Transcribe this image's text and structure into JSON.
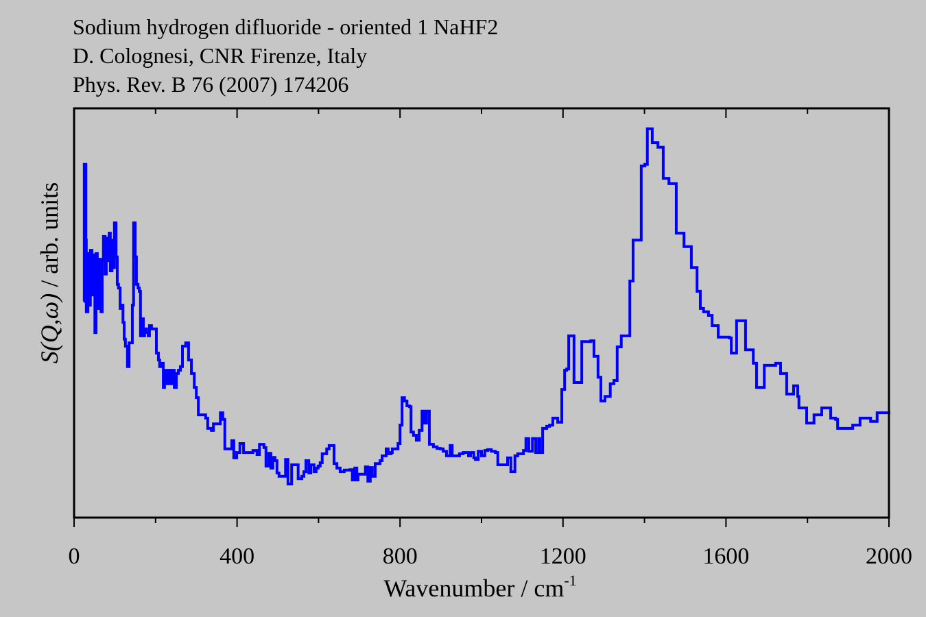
{
  "chart_data": {
    "type": "line",
    "style": "step",
    "title_lines": [
      "Sodium hydrogen difluoride - oriented 1 NaHF2",
      "D. Colognesi, CNR Firenze, Italy",
      "Phys. Rev. B 76 (2007) 174206"
    ],
    "xlabel": "Wavenumber / cm",
    "xlabel_superscript": "-1",
    "ylabel_italic": "S(Q,ω)",
    "ylabel_rest": " / arb. units",
    "xlim": [
      0,
      2000
    ],
    "ylim": [
      0,
      1
    ],
    "x_ticks_major": [
      0,
      400,
      800,
      1200,
      1600,
      2000
    ],
    "x_tick_labels": [
      "0",
      "400",
      "800",
      "1200",
      "1600",
      "2000"
    ],
    "x_ticks_minor": [
      200,
      600,
      1000,
      1400,
      1800
    ],
    "grid": false,
    "legend": "none",
    "series": [
      {
        "name": "NaHF2 oriented 1",
        "color": "#0000ff",
        "x": [
          24,
          25,
          29,
          30,
          34,
          37,
          40,
          44,
          47,
          51,
          54,
          57,
          61,
          66,
          69,
          72,
          76,
          79,
          82,
          86,
          89,
          93,
          96,
          99,
          103,
          106,
          109,
          113,
          116,
          120,
          123,
          126,
          131,
          135,
          143,
          146,
          150,
          153,
          157,
          160,
          163,
          167,
          170,
          173,
          178,
          182,
          185,
          190,
          202,
          207,
          210,
          214,
          219,
          222,
          226,
          231,
          236,
          241,
          246,
          251,
          256,
          261,
          266,
          274,
          281,
          288,
          295,
          300,
          305,
          323,
          328,
          337,
          342,
          359,
          365,
          370,
          387,
          392,
          399,
          407,
          416,
          439,
          449,
          455,
          466,
          471,
          478,
          483,
          488,
          493,
          498,
          503,
          519,
          525,
          534,
          550,
          559,
          564,
          569,
          576,
          581,
          589,
          594,
          599,
          604,
          609,
          620,
          626,
          638,
          645,
          653,
          663,
          677,
          683,
          689,
          694,
          697,
          715,
          721,
          727,
          732,
          739,
          751,
          756,
          766,
          771,
          778,
          781,
          795,
          800,
          805,
          811,
          817,
          823,
          827,
          833,
          840,
          847,
          854,
          860,
          865,
          872,
          882,
          891,
          899,
          906,
          914,
          923,
          928,
          946,
          955,
          968,
          973,
          981,
          985,
          992,
          1000,
          1008,
          1015,
          1024,
          1034,
          1040,
          1064,
          1072,
          1082,
          1089,
          1103,
          1109,
          1116,
          1125,
          1133,
          1140,
          1143,
          1150,
          1160,
          1167,
          1175,
          1187,
          1197,
          1204,
          1209,
          1214,
          1227,
          1246,
          1268,
          1276,
          1286,
          1293,
          1303,
          1316,
          1325,
          1333,
          1343,
          1364,
          1372,
          1392,
          1401,
          1407,
          1419,
          1433,
          1446,
          1460,
          1478,
          1497,
          1515,
          1529,
          1537,
          1545,
          1557,
          1566,
          1581,
          1608,
          1613,
          1626,
          1648,
          1667,
          1675,
          1694,
          1722,
          1734,
          1749,
          1766,
          1776,
          1779,
          1798,
          1816,
          1835,
          1857,
          1869,
          1874,
          1911,
          1929,
          1955,
          1971,
          2000
        ],
        "y": [
          0.528,
          0.863,
          0.678,
          0.503,
          0.645,
          0.519,
          0.653,
          0.544,
          0.642,
          0.452,
          0.645,
          0.511,
          0.631,
          0.503,
          0.628,
          0.687,
          0.595,
          0.683,
          0.628,
          0.695,
          0.603,
          0.678,
          0.611,
          0.72,
          0.637,
          0.57,
          0.561,
          0.511,
          0.519,
          0.477,
          0.436,
          0.419,
          0.369,
          0.427,
          0.519,
          0.72,
          0.637,
          0.57,
          0.561,
          0.553,
          0.444,
          0.486,
          0.444,
          0.461,
          0.452,
          0.444,
          0.469,
          0.461,
          0.402,
          0.385,
          0.369,
          0.377,
          0.318,
          0.36,
          0.327,
          0.36,
          0.327,
          0.36,
          0.318,
          0.352,
          0.36,
          0.369,
          0.419,
          0.427,
          0.385,
          0.352,
          0.318,
          0.293,
          0.251,
          0.243,
          0.218,
          0.213,
          0.229,
          0.256,
          0.24,
          0.168,
          0.188,
          0.146,
          0.159,
          0.181,
          0.159,
          0.164,
          0.154,
          0.179,
          0.171,
          0.126,
          0.157,
          0.121,
          0.147,
          0.139,
          0.109,
          0.101,
          0.142,
          0.082,
          0.129,
          0.095,
          0.101,
          0.112,
          0.139,
          0.109,
          0.129,
          0.112,
          0.121,
          0.126,
          0.134,
          0.156,
          0.168,
          0.176,
          0.132,
          0.121,
          0.112,
          0.116,
          0.117,
          0.092,
          0.121,
          0.092,
          0.106,
          0.124,
          0.089,
          0.122,
          0.101,
          0.132,
          0.139,
          0.151,
          0.168,
          0.156,
          0.159,
          0.168,
          0.181,
          0.226,
          0.293,
          0.285,
          0.273,
          0.271,
          0.209,
          0.201,
          0.189,
          0.213,
          0.26,
          0.231,
          0.26,
          0.179,
          0.173,
          0.169,
          0.168,
          0.162,
          0.151,
          0.176,
          0.151,
          0.156,
          0.159,
          0.151,
          0.159,
          0.146,
          0.142,
          0.162,
          0.151,
          0.164,
          0.166,
          0.162,
          0.159,
          0.129,
          0.146,
          0.112,
          0.151,
          0.156,
          0.164,
          0.193,
          0.162,
          0.193,
          0.159,
          0.193,
          0.159,
          0.218,
          0.223,
          0.226,
          0.243,
          0.233,
          0.313,
          0.36,
          0.363,
          0.444,
          0.33,
          0.43,
          0.432,
          0.394,
          0.343,
          0.285,
          0.296,
          0.327,
          0.335,
          0.417,
          0.444,
          0.578,
          0.678,
          0.859,
          0.863,
          0.95,
          0.916,
          0.905,
          0.829,
          0.816,
          0.695,
          0.662,
          0.611,
          0.553,
          0.511,
          0.503,
          0.494,
          0.469,
          0.441,
          0.439,
          0.402,
          0.481,
          0.41,
          0.377,
          0.318,
          0.372,
          0.377,
          0.352,
          0.302,
          0.322,
          0.296,
          0.268,
          0.231,
          0.251,
          0.268,
          0.243,
          0.24,
          0.218,
          0.226,
          0.243,
          0.235,
          0.256,
          0.253
        ]
      }
    ]
  }
}
